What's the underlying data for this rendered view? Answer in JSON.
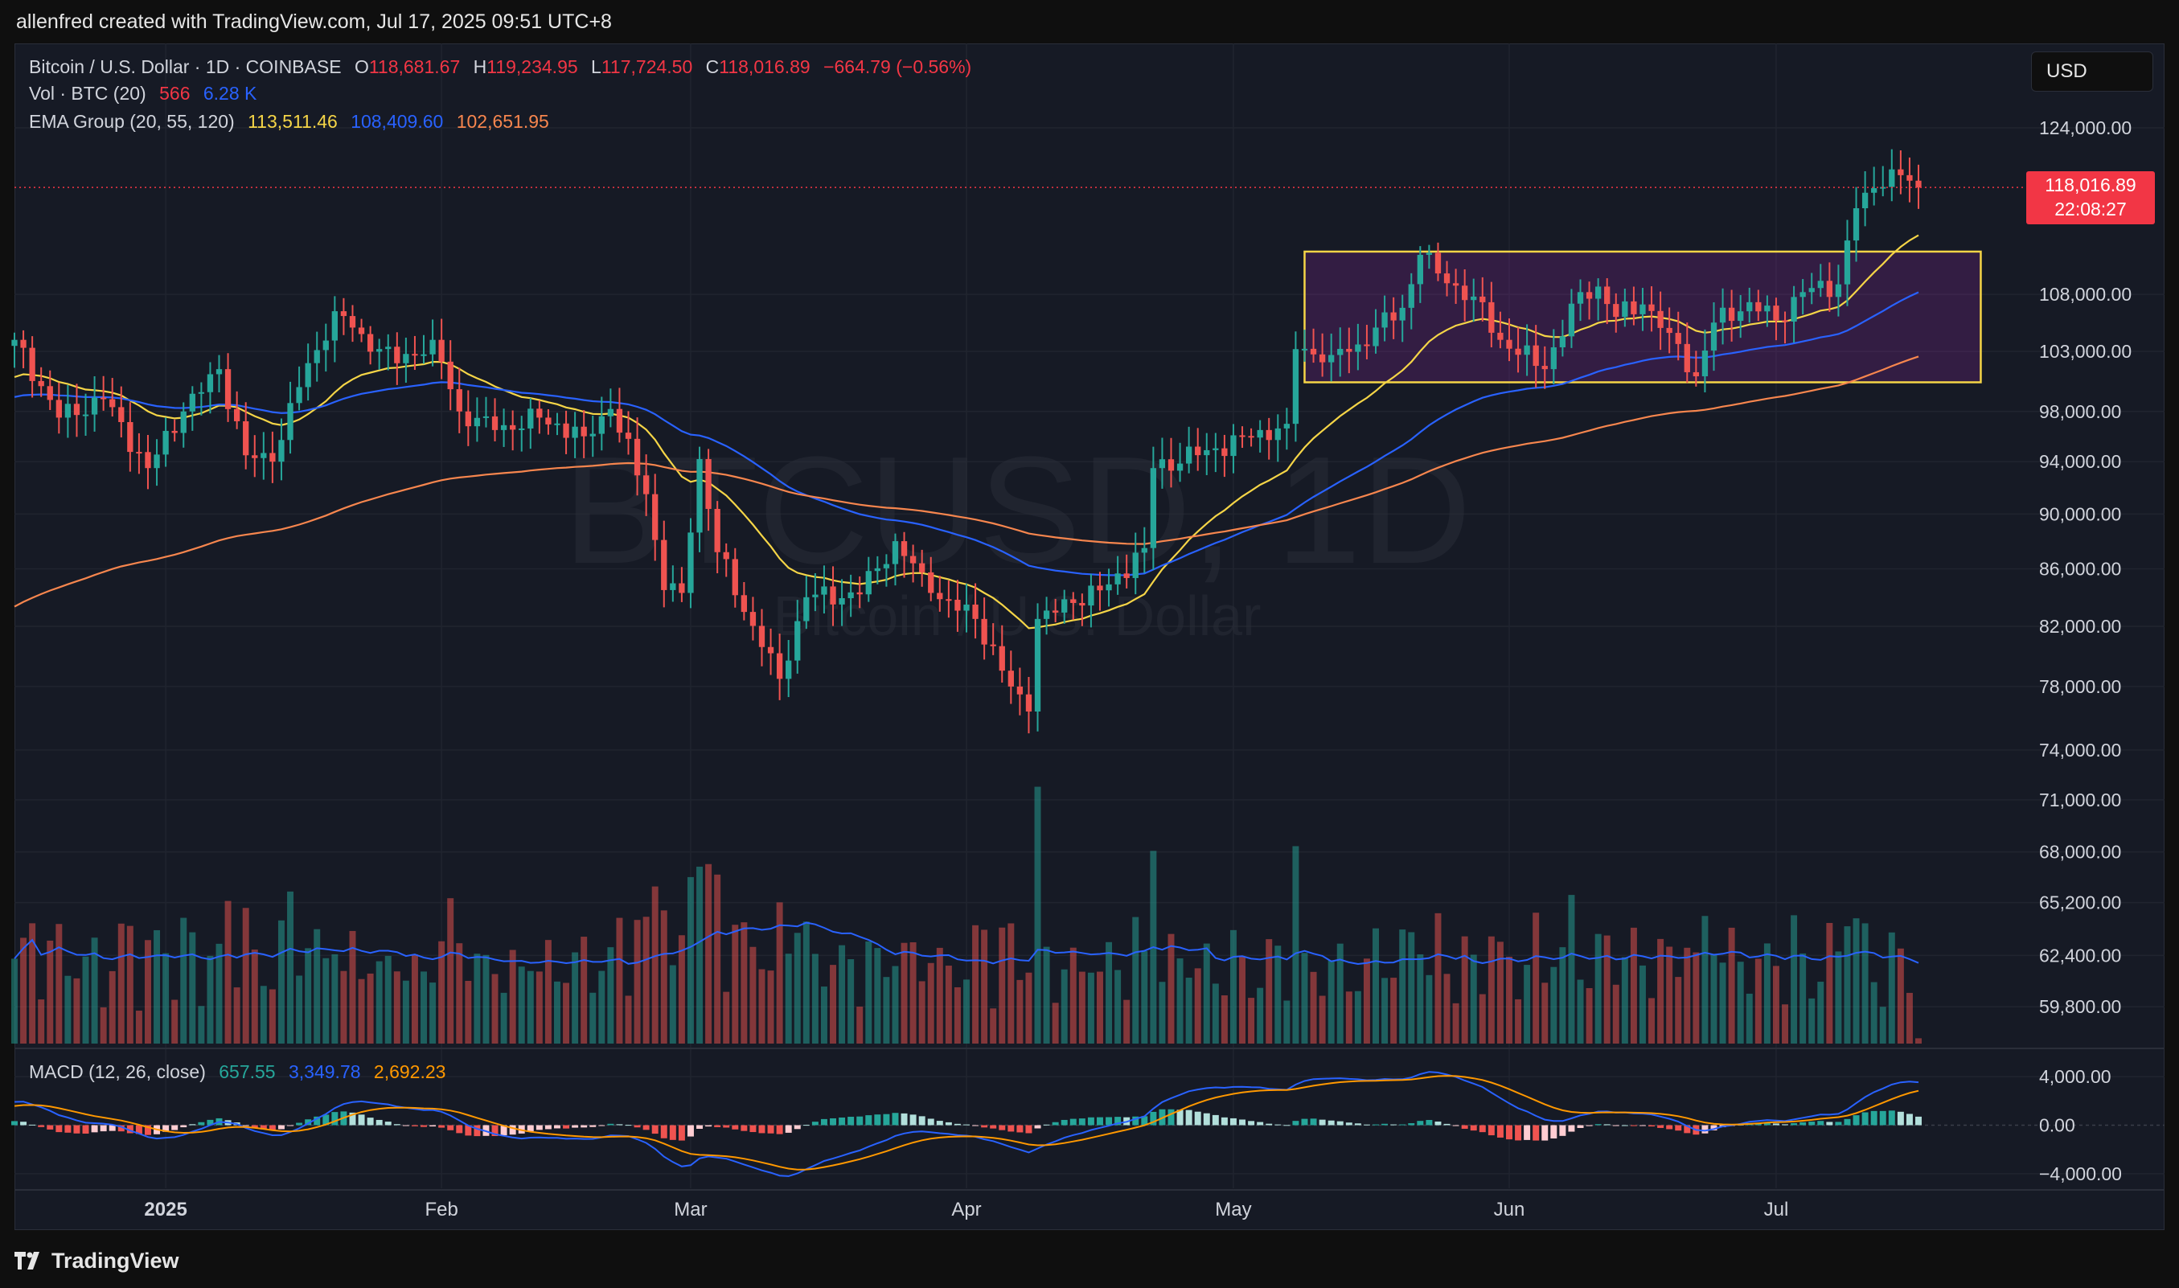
{
  "header": {
    "credit": "allenfred created with TradingView.com, Jul 17, 2025 09:51 UTC+8"
  },
  "legend": {
    "symbol": "Bitcoin / U.S. Dollar · 1D · COINBASE",
    "open_label": "O",
    "open": "118,681.67",
    "high_label": "H",
    "high": "119,234.95",
    "low_label": "L",
    "low": "117,724.50",
    "close_label": "C",
    "close": "118,016.89",
    "change": "−664.79 (−0.56%)",
    "vol_label": "Vol · BTC (20)",
    "vol_value": "566",
    "vol_ma": "6.28 K",
    "ema_label": "EMA Group (20, 55, 120)",
    "ema20": "113,511.46",
    "ema55": "108,409.60",
    "ema120": "102,651.95",
    "macd_label": "MACD (12, 26, close)",
    "macd_hist": "657.55",
    "macd_line": "3,349.78",
    "macd_signal": "2,692.23"
  },
  "currency_button": "USD",
  "last_price": {
    "price": "118,016.89",
    "countdown": "22:08:27",
    "value": 118016.89
  },
  "watermark": {
    "symbol": "BTCUSD, 1D",
    "name": "Bitcoin / U.S. Dollar"
  },
  "footer": {
    "brand": "TradingView"
  },
  "colors": {
    "up": "#26a69a",
    "down": "#ef5350",
    "ema20": "#f5d547",
    "ema55": "#2962ff",
    "ema120": "#f7864e",
    "macd": "#2962ff",
    "signal": "#ff9800",
    "box": "#f5d547"
  },
  "chart_data": {
    "type": "candlestick",
    "title": "Bitcoin / U.S. Dollar · 1D · COINBASE",
    "x_range": [
      "2024-12-15",
      "2025-07-17"
    ],
    "x_ticks": [
      {
        "date": "2025-01-01",
        "label": "2025"
      },
      {
        "date": "2025-02-01",
        "label": "Feb"
      },
      {
        "date": "2025-03-01",
        "label": "Mar"
      },
      {
        "date": "2025-04-01",
        "label": "Apr"
      },
      {
        "date": "2025-05-01",
        "label": "May"
      },
      {
        "date": "2025-06-01",
        "label": "Jun"
      },
      {
        "date": "2025-07-01",
        "label": "Jul"
      }
    ],
    "price_axis": {
      "scale": "log",
      "range": [
        58000,
        133000
      ],
      "ticks": [
        124000,
        108000,
        103000,
        98000,
        94000,
        90000,
        86000,
        82000,
        78000,
        74000,
        71000,
        68000,
        65200,
        62400,
        59800
      ],
      "tick_labels": [
        "124,000.00",
        "108,000.00",
        "103,000.00",
        "98,000.00",
        "94,000.00",
        "90,000.00",
        "86,000.00",
        "82,000.00",
        "78,000.00",
        "74,000.00",
        "71,000.00",
        "68,000.00",
        "65,200.00",
        "62,400.00",
        "59,800.00"
      ]
    },
    "macd_axis": {
      "range": [
        -5200,
        5400
      ],
      "ticks": [
        4000,
        0,
        -4000
      ],
      "tick_labels": [
        "4,000.00",
        "0.00",
        "−4,000.00"
      ]
    },
    "close_anchors": [
      [
        "2024-12-15",
        104000
      ],
      [
        "2024-12-20",
        97500
      ],
      [
        "2024-12-25",
        99000
      ],
      [
        "2024-12-30",
        93500
      ],
      [
        "2025-01-03",
        98000
      ],
      [
        "2025-01-07",
        101500
      ],
      [
        "2025-01-10",
        94500
      ],
      [
        "2025-01-13",
        94000
      ],
      [
        "2025-01-16",
        100000
      ],
      [
        "2025-01-20",
        106500
      ],
      [
        "2025-01-23",
        104500
      ],
      [
        "2025-01-27",
        102000
      ],
      [
        "2025-01-31",
        104000
      ],
      [
        "2025-02-03",
        98000
      ],
      [
        "2025-02-07",
        96500
      ],
      [
        "2025-02-12",
        97500
      ],
      [
        "2025-02-17",
        96000
      ],
      [
        "2025-02-20",
        98200
      ],
      [
        "2025-02-24",
        91500
      ],
      [
        "2025-02-26",
        84500
      ],
      [
        "2025-02-28",
        84300
      ],
      [
        "2025-03-02",
        94200
      ],
      [
        "2025-03-04",
        87200
      ],
      [
        "2025-03-09",
        80600
      ],
      [
        "2025-03-11",
        78500
      ],
      [
        "2025-03-14",
        84000
      ],
      [
        "2025-03-20",
        84200
      ],
      [
        "2025-03-24",
        88000
      ],
      [
        "2025-03-28",
        84300
      ],
      [
        "2025-04-02",
        82500
      ],
      [
        "2025-04-06",
        78000
      ],
      [
        "2025-04-08",
        76400
      ],
      [
        "2025-04-09",
        82500
      ],
      [
        "2025-04-13",
        83600
      ],
      [
        "2025-04-17",
        84900
      ],
      [
        "2025-04-21",
        87500
      ],
      [
        "2025-04-22",
        93500
      ],
      [
        "2025-04-28",
        94900
      ],
      [
        "2025-05-03",
        95900
      ],
      [
        "2025-05-07",
        97000
      ],
      [
        "2025-05-08",
        103200
      ],
      [
        "2025-05-12",
        102700
      ],
      [
        "2025-05-15",
        103600
      ],
      [
        "2025-05-20",
        106800
      ],
      [
        "2025-05-22",
        111600
      ],
      [
        "2025-05-25",
        109000
      ],
      [
        "2025-05-28",
        107800
      ],
      [
        "2025-05-31",
        104000
      ],
      [
        "2025-06-05",
        101500
      ],
      [
        "2025-06-09",
        108200
      ],
      [
        "2025-06-11",
        108700
      ],
      [
        "2025-06-13",
        106000
      ],
      [
        "2025-06-16",
        107100
      ],
      [
        "2025-06-19",
        104600
      ],
      [
        "2025-06-22",
        100900
      ],
      [
        "2025-06-24",
        105500
      ],
      [
        "2025-06-28",
        107300
      ],
      [
        "2025-07-01",
        105700
      ],
      [
        "2025-07-04",
        108200
      ],
      [
        "2025-07-08",
        108900
      ],
      [
        "2025-07-10",
        116000
      ],
      [
        "2025-07-11",
        117500
      ],
      [
        "2025-07-14",
        119800
      ],
      [
        "2025-07-16",
        118681.67
      ],
      [
        "2025-07-17",
        118016.89
      ]
    ],
    "range_box": {
      "start": "2025-05-09",
      "end": "2025-07-24",
      "high": 111900,
      "low": 100400
    },
    "ema": [
      {
        "name": "EMA 20",
        "period": 20,
        "last": 113511.46
      },
      {
        "name": "EMA 55",
        "period": 55,
        "last": 108409.6
      },
      {
        "name": "EMA 120",
        "period": 120,
        "last": 102651.95
      }
    ],
    "volume": {
      "name": "Vol · BTC (20)",
      "last": 566,
      "ma": "6.28 K"
    },
    "macd": {
      "name": "MACD (12, 26, close)",
      "histogram_last": 657.55,
      "macd_last": 3349.78,
      "signal_last": 2692.23
    }
  }
}
